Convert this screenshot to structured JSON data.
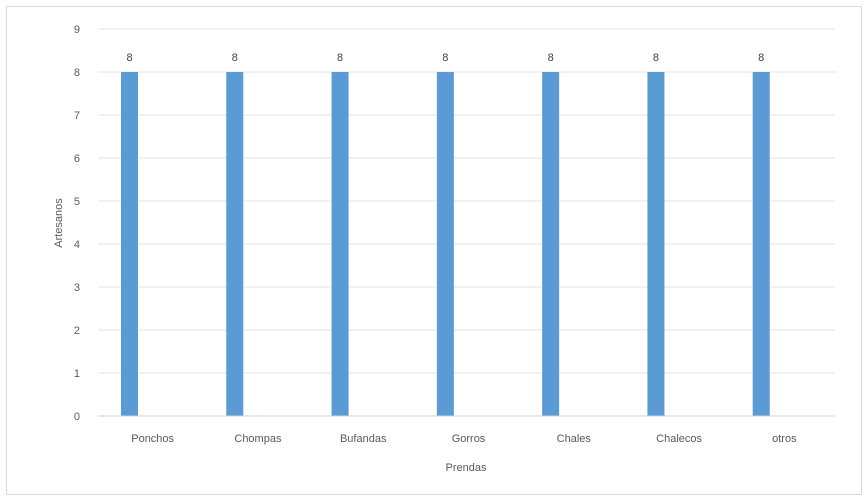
{
  "chart_data": {
    "type": "bar",
    "categories": [
      "Ponchos",
      "Chompas",
      "Bufandas",
      "Gorros",
      "Chales",
      "Chalecos",
      "otros"
    ],
    "values": [
      8,
      8,
      8,
      8,
      8,
      8,
      8
    ],
    "data_labels": [
      "8",
      "8",
      "8",
      "8",
      "8",
      "8",
      "8"
    ],
    "yticks": [
      "0",
      "1",
      "2",
      "3",
      "4",
      "5",
      "6",
      "7",
      "8",
      "9"
    ],
    "xlabel": "Prendas",
    "ylabel": "Artesanos",
    "ylim": [
      0,
      9
    ],
    "grid": true,
    "legend": "none",
    "bar_color": "#5b9bd5",
    "grid_color": "#e3e3e3"
  }
}
